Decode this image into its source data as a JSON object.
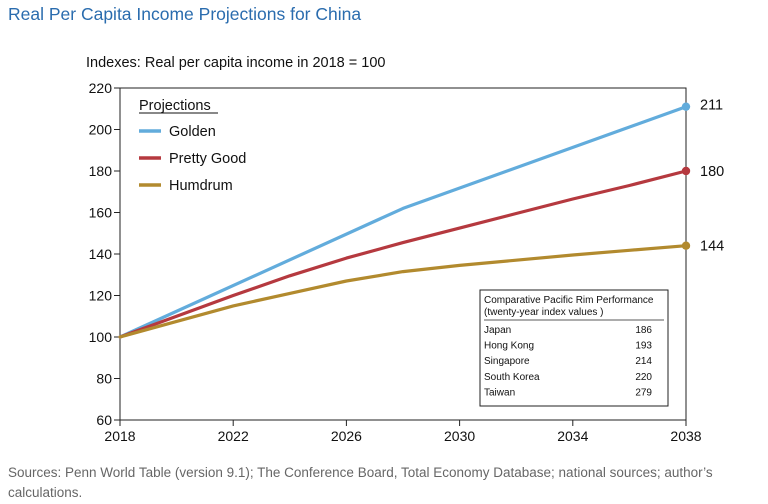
{
  "title": "Real Per Capita Income Projections for China",
  "subtitle": "Indexes: Real per capita income in 2018 = 100",
  "source": "Sources: Penn World Table (version 9.1); The Conference Board, Total Economy Database; national sources; author’s calculations.",
  "colors": {
    "title": "#2a6cae",
    "golden": "#62acdc",
    "pretty_good": "#b5393f",
    "humdrum": "#b28a2e"
  },
  "chart_data": {
    "type": "line",
    "title": "Real Per Capita Income Projections for China",
    "ylabel": "Indexes: Real per capita income in 2018 = 100",
    "xlabel": "",
    "xlim": [
      2018,
      2038
    ],
    "ylim": [
      60,
      220
    ],
    "x_ticks": [
      "2018",
      "2022",
      "2026",
      "2030",
      "2034",
      "2038"
    ],
    "y_ticks": [
      "60",
      "80",
      "100",
      "120",
      "140",
      "160",
      "180",
      "200",
      "220"
    ],
    "legend_title": "Projections",
    "legend_position": "top-left",
    "series": [
      {
        "name": "Golden",
        "color": "#62acdc",
        "end_label": "211",
        "x": [
          2018,
          2028,
          2038
        ],
        "values": [
          100,
          162,
          211
        ]
      },
      {
        "name": "Pretty Good",
        "color": "#b5393f",
        "end_label": "180",
        "x": [
          2018,
          2020,
          2022,
          2024,
          2026,
          2028,
          2030,
          2032,
          2034,
          2036,
          2038
        ],
        "values": [
          100,
          110,
          120,
          129.5,
          138,
          145.5,
          152.5,
          159.5,
          166.5,
          173,
          180
        ]
      },
      {
        "name": "Humdrum",
        "color": "#b28a2e",
        "end_label": "144",
        "x": [
          2018,
          2020,
          2022,
          2024,
          2026,
          2028,
          2030,
          2032,
          2034,
          2036,
          2038
        ],
        "values": [
          100,
          107.5,
          115,
          121,
          127,
          131.5,
          134.5,
          137,
          139.5,
          141.8,
          144
        ]
      }
    ],
    "inset_table": {
      "title_line1": "Comparative Pacific Rim Performance",
      "title_line2": "(twenty-year index values )",
      "rows": [
        {
          "country": "Japan",
          "value": "186"
        },
        {
          "country": "Hong Kong",
          "value": "193"
        },
        {
          "country": "Singapore",
          "value": "214"
        },
        {
          "country": "South Korea",
          "value": "220"
        },
        {
          "country": "Taiwan",
          "value": "279"
        }
      ]
    }
  }
}
